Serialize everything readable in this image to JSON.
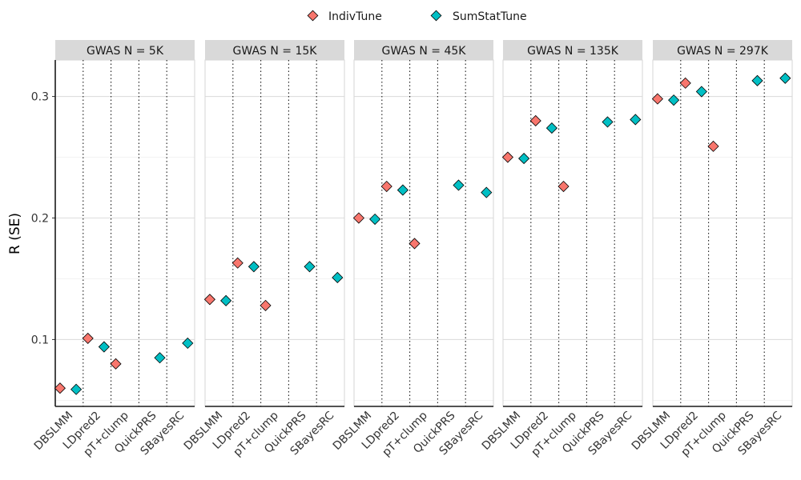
{
  "chart_data": {
    "type": "scatter",
    "ylabel": "R (SE)",
    "ylim": [
      0.045,
      0.33
    ],
    "yticks": [
      0.1,
      0.2,
      0.3
    ],
    "grid": true,
    "legend_position": "top",
    "categories": [
      "DBSLMM",
      "LDpred2",
      "pT+clump",
      "QuickPRS",
      "SBayesRC"
    ],
    "series": [
      {
        "name": "IndivTune",
        "color": "#F8766D"
      },
      {
        "name": "SumStatTune",
        "color": "#00BFC4"
      }
    ],
    "panels": [
      {
        "label": "GWAS N = 5K",
        "IndivTune": [
          0.06,
          0.101,
          0.08,
          null,
          null
        ],
        "SumStatTune": [
          0.059,
          0.094,
          null,
          0.085,
          0.097
        ]
      },
      {
        "label": "GWAS N = 15K",
        "IndivTune": [
          0.133,
          0.163,
          0.128,
          null,
          null
        ],
        "SumStatTune": [
          0.132,
          0.16,
          null,
          0.16,
          0.151
        ]
      },
      {
        "label": "GWAS N = 45K",
        "IndivTune": [
          0.2,
          0.226,
          0.179,
          null,
          null
        ],
        "SumStatTune": [
          0.199,
          0.223,
          null,
          0.227,
          0.221
        ]
      },
      {
        "label": "GWAS N = 135K",
        "IndivTune": [
          0.25,
          0.28,
          0.226,
          null,
          null
        ],
        "SumStatTune": [
          0.249,
          0.274,
          null,
          0.279,
          0.281
        ]
      },
      {
        "label": "GWAS N = 297K",
        "IndivTune": [
          0.298,
          0.311,
          0.259,
          null,
          null
        ],
        "SumStatTune": [
          0.297,
          0.304,
          null,
          0.313,
          0.315
        ]
      }
    ]
  }
}
